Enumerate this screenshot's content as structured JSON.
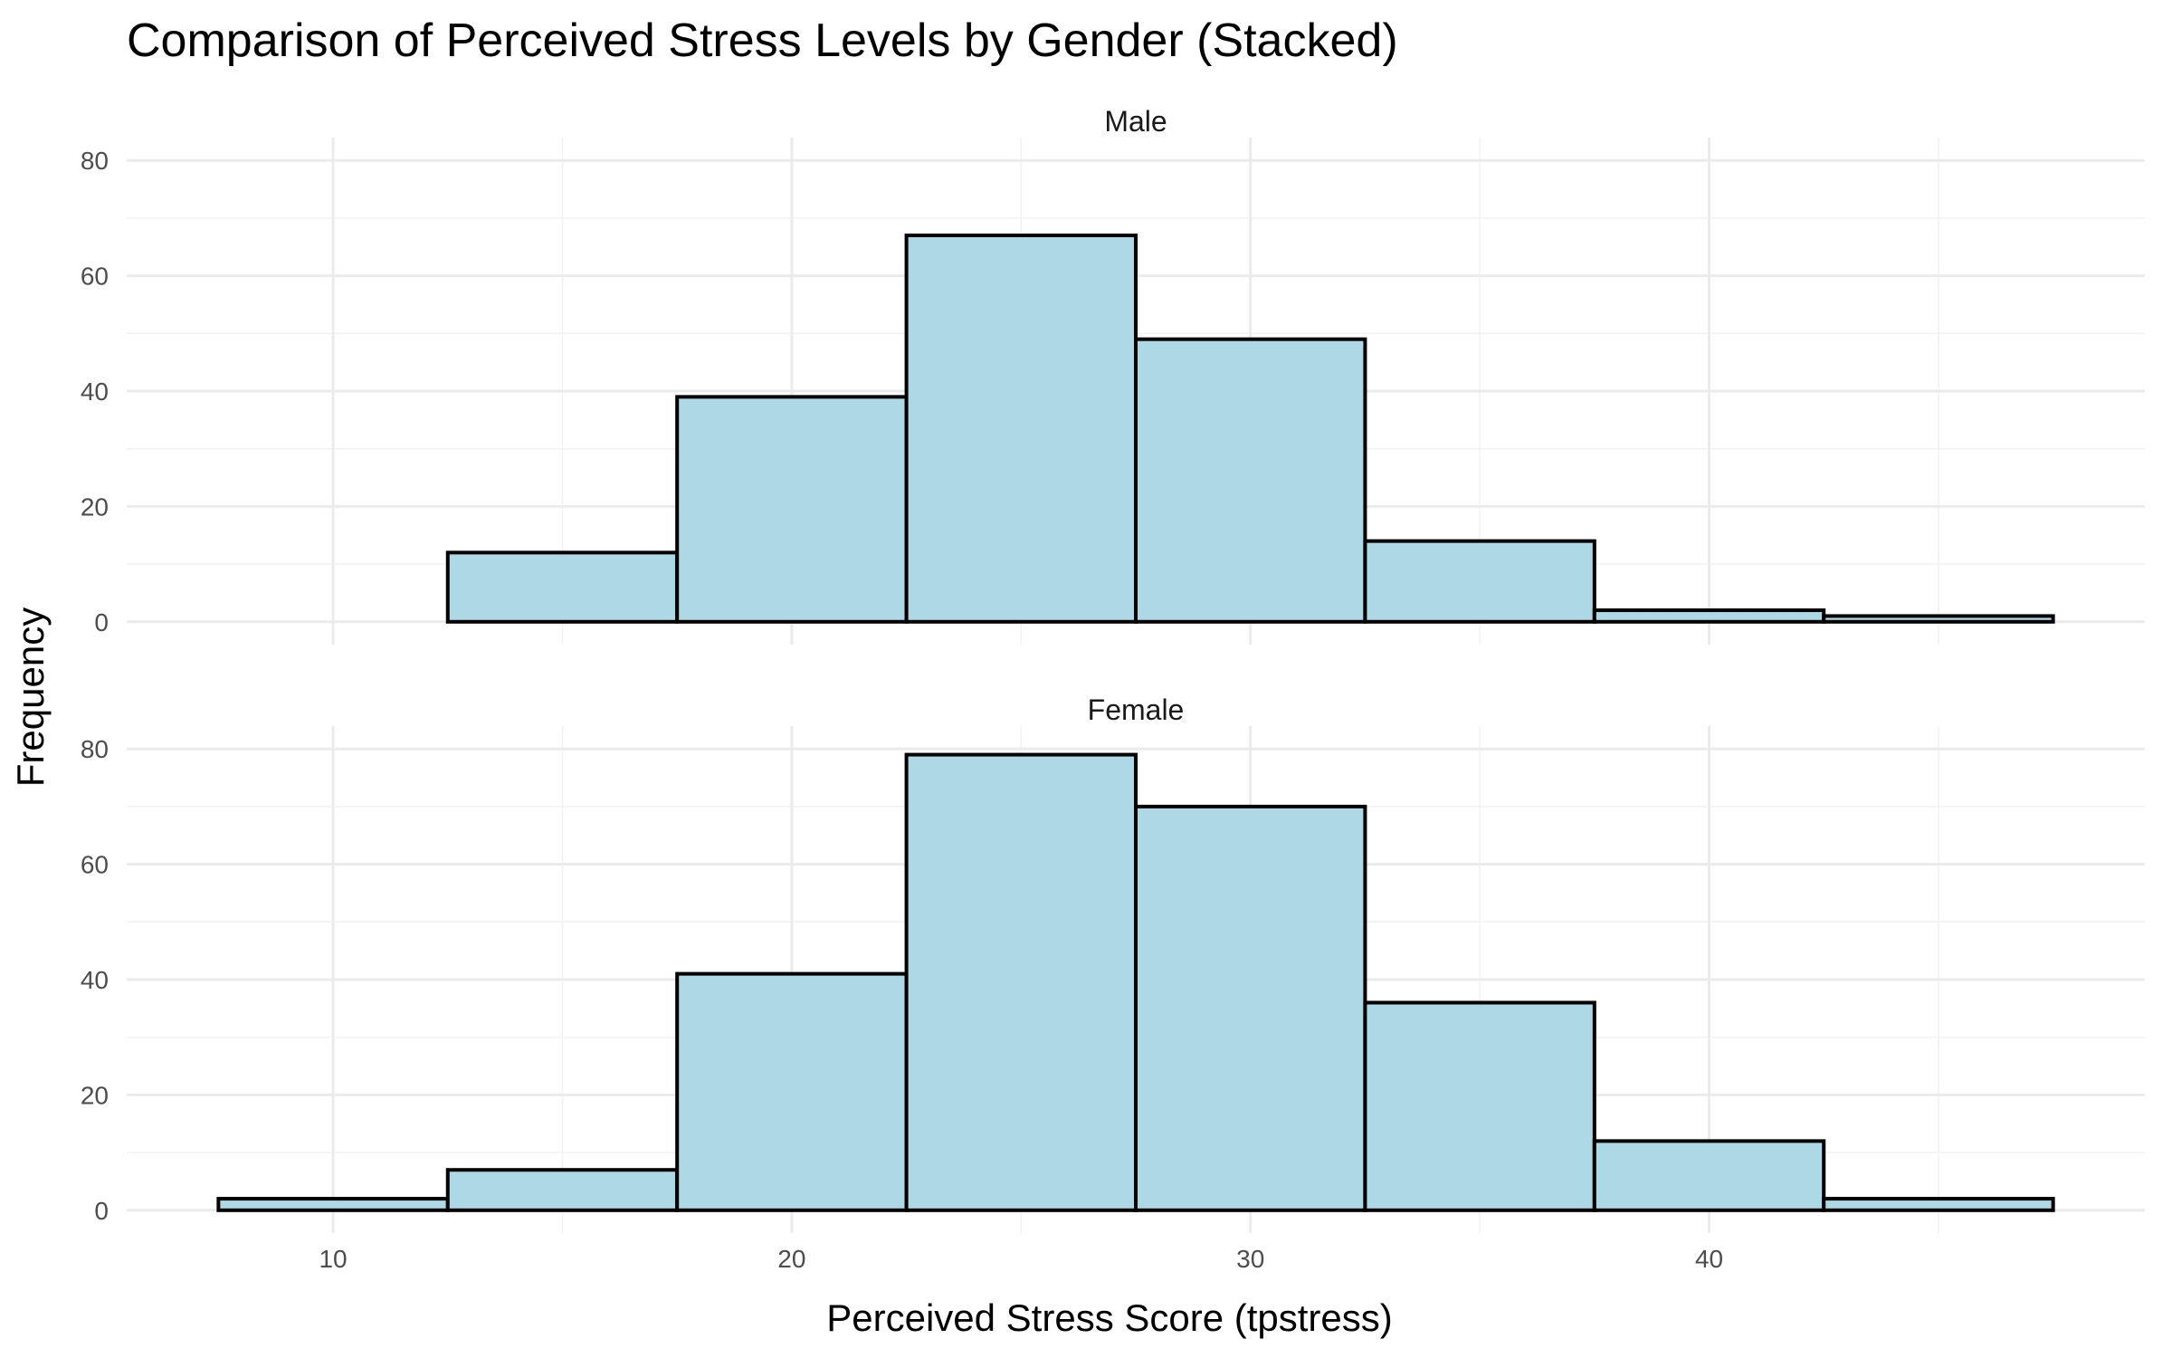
{
  "chart_data": {
    "type": "bar",
    "title": "Comparison of Perceived Stress Levels by Gender (Stacked)",
    "xlabel": "Perceived Stress Score (tpstress)",
    "ylabel": "Frequency",
    "bin_edges": [
      7.5,
      12.5,
      17.5,
      22.5,
      27.5,
      32.5,
      37.5,
      42.5,
      47.5
    ],
    "xlim": [
      5.5,
      49.5
    ],
    "ylim": [
      0,
      80
    ],
    "x_ticks": [
      10,
      20,
      30,
      40
    ],
    "y_ticks": [
      0,
      20,
      40,
      60,
      80
    ],
    "grid": true,
    "bar_color": "#add8e6",
    "bar_outline": "#000000",
    "panels": [
      {
        "name": "Male",
        "values": [
          0,
          12,
          39,
          67,
          49,
          14,
          2,
          1
        ]
      },
      {
        "name": "Female",
        "values": [
          2,
          7,
          41,
          79,
          70,
          36,
          12,
          2
        ]
      }
    ]
  }
}
